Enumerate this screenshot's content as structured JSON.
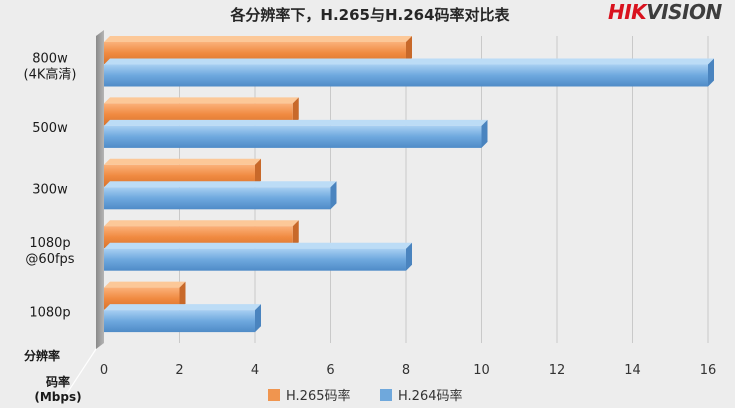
{
  "brand": {
    "logo_text_red": "HIK",
    "logo_text_dark": "VISION",
    "red_color": "#d9121e",
    "dark_color": "#3d3d3d"
  },
  "chart_data": {
    "type": "bar",
    "orientation": "horizontal",
    "title": "各分辨率下，H.265与H.264码率对比表",
    "categories": [
      "800w\n(4K高清)",
      "500w",
      "300w",
      "1080p\n@60fps",
      "1080p"
    ],
    "series": [
      {
        "name": "H.265码率",
        "color": "#f0954f",
        "values": [
          8,
          5,
          4,
          5,
          2
        ]
      },
      {
        "name": "H.264码率",
        "color": "#6fa8dc",
        "values": [
          16,
          10,
          6,
          8,
          4
        ]
      }
    ],
    "xticks": [
      0,
      2,
      4,
      6,
      8,
      10,
      12,
      14,
      16
    ],
    "xlim": [
      0,
      16
    ],
    "category_axis_label": "分辨率",
    "value_axis_label": "码率\n(Mbps)",
    "grid": true,
    "legend_position": "bottom"
  }
}
